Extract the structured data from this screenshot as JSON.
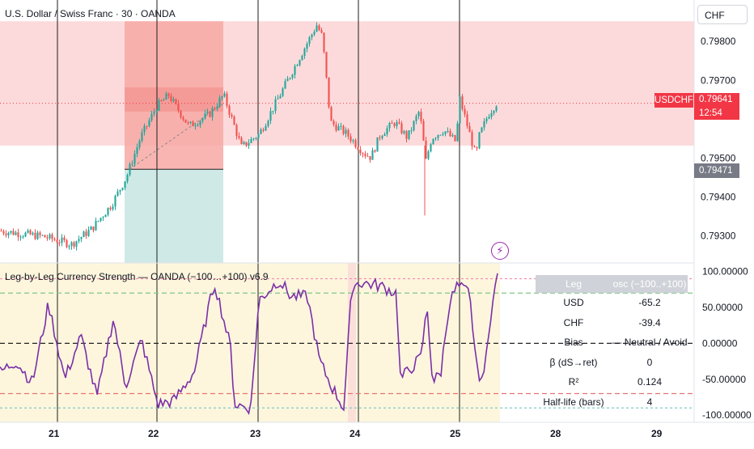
{
  "header": {
    "title": "U.S. Dollar / Swiss Franc · 30 · OANDA",
    "currency": "CHF"
  },
  "indicator": {
    "title": "Leg-by-Leg Currency Strength — OANDA (−100…+100) v6.9",
    "flash_icon": "lightning-icon"
  },
  "price_tag": {
    "symbol": "USDCHF",
    "price": "0.79641",
    "countdown": "12:54",
    "secondary": "0.79471"
  },
  "stats_table": {
    "header": [
      "Leg",
      "osc (−100..+100)"
    ],
    "rows": [
      {
        "label": "USD",
        "value": "-65.2"
      },
      {
        "label": "CHF",
        "value": "-39.4"
      },
      {
        "label": "Bias",
        "value": "— Neutral / Avoid"
      },
      {
        "label": "β (dS→ret)",
        "value": "0"
      },
      {
        "label": "R²",
        "value": "0.124"
      },
      {
        "label": "Half-life (bars)",
        "value": "4"
      }
    ]
  },
  "colors": {
    "bull": "#26a69a",
    "bear": "#ef5350",
    "zone_pink": "#fcdadb",
    "zone_red": "#f7a8a4",
    "zone_teal": "#cfe9e6",
    "osc_line": "#7b2fa8",
    "osc_bg": "#fdf6dd",
    "price_tag": "#f23645",
    "secondary_tag": "#787b86"
  },
  "chart_data": [
    {
      "type": "candlestick",
      "title": "U.S. Dollar / Swiss Franc · 30 · OANDA",
      "x_labels": [
        "21",
        "22",
        "23",
        "24",
        "25",
        "28",
        "29"
      ],
      "y_ticks": [
        "0.79800",
        "0.79700",
        "0.79500",
        "0.79400",
        "0.79300"
      ],
      "ylim": [
        0.7923,
        0.7989
      ],
      "last_price": 0.79641,
      "approx_close_path": [
        [
          0.0,
          0.79313
        ],
        [
          0.055,
          0.79298
        ],
        [
          0.09,
          0.79278
        ],
        [
          0.115,
          0.79318
        ],
        [
          0.14,
          0.79382
        ],
        [
          0.158,
          0.79452
        ],
        [
          0.175,
          0.79552
        ],
        [
          0.195,
          0.79632
        ],
        [
          0.21,
          0.79662
        ],
        [
          0.235,
          0.79582
        ],
        [
          0.26,
          0.79612
        ],
        [
          0.278,
          0.79662
        ],
        [
          0.3,
          0.79528
        ],
        [
          0.322,
          0.79562
        ],
        [
          0.345,
          0.79652
        ],
        [
          0.37,
          0.79752
        ],
        [
          0.393,
          0.79842
        ],
        [
          0.4,
          0.79812
        ],
        [
          0.41,
          0.79592
        ],
        [
          0.43,
          0.79562
        ],
        [
          0.452,
          0.79512
        ],
        [
          0.46,
          0.79502
        ],
        [
          0.472,
          0.79562
        ],
        [
          0.49,
          0.79592
        ],
        [
          0.505,
          0.79552
        ],
        [
          0.52,
          0.79622
        ],
        [
          0.528,
          0.79492
        ],
        [
          0.535,
          0.79552
        ],
        [
          0.55,
          0.79572
        ],
        [
          0.565,
          0.79542
        ],
        [
          0.57,
          0.79652
        ],
        [
          0.59,
          0.79502
        ],
        [
          0.593,
          0.79552
        ],
        [
          0.605,
          0.79612
        ],
        [
          0.615,
          0.79641
        ]
      ],
      "zones": [
        {
          "kind": "resistance",
          "range": [
            0.79532,
            0.79852
          ]
        },
        {
          "kind": "risk",
          "range": [
            0.79471,
            0.79852
          ]
        },
        {
          "kind": "target",
          "range": [
            0.79228,
            0.79471
          ]
        }
      ]
    },
    {
      "type": "line",
      "title": "Leg-by-Leg Currency Strength — OANDA (−100…+100) v6.9",
      "y_ticks": [
        "100.00000",
        "50.00000",
        "0.00000",
        "-50.00000",
        "-100.00000"
      ],
      "ylim": [
        -110,
        112
      ],
      "levels": [
        90,
        70,
        0,
        -70,
        -90
      ],
      "approx_path": [
        [
          0.0,
          -40
        ],
        [
          0.02,
          -25
        ],
        [
          0.04,
          -55
        ],
        [
          0.06,
          55
        ],
        [
          0.08,
          -50
        ],
        [
          0.1,
          10
        ],
        [
          0.12,
          -75
        ],
        [
          0.14,
          35
        ],
        [
          0.155,
          -60
        ],
        [
          0.175,
          5
        ],
        [
          0.195,
          -85
        ],
        [
          0.215,
          -80
        ],
        [
          0.24,
          -40
        ],
        [
          0.265,
          85
        ],
        [
          0.285,
          -5
        ],
        [
          0.29,
          -85
        ],
        [
          0.31,
          -90
        ],
        [
          0.32,
          60
        ],
        [
          0.345,
          88
        ],
        [
          0.36,
          65
        ],
        [
          0.38,
          65
        ],
        [
          0.395,
          -25
        ],
        [
          0.41,
          -60
        ],
        [
          0.425,
          -90
        ],
        [
          0.435,
          80
        ],
        [
          0.445,
          85
        ],
        [
          0.47,
          80
        ],
        [
          0.49,
          70
        ],
        [
          0.495,
          -50
        ],
        [
          0.52,
          -20
        ],
        [
          0.528,
          50
        ],
        [
          0.535,
          -55
        ],
        [
          0.545,
          -40
        ],
        [
          0.555,
          55
        ],
        [
          0.565,
          80
        ],
        [
          0.58,
          70
        ],
        [
          0.59,
          -40
        ],
        [
          0.598,
          -50
        ],
        [
          0.605,
          30
        ],
        [
          0.615,
          95
        ]
      ]
    }
  ]
}
